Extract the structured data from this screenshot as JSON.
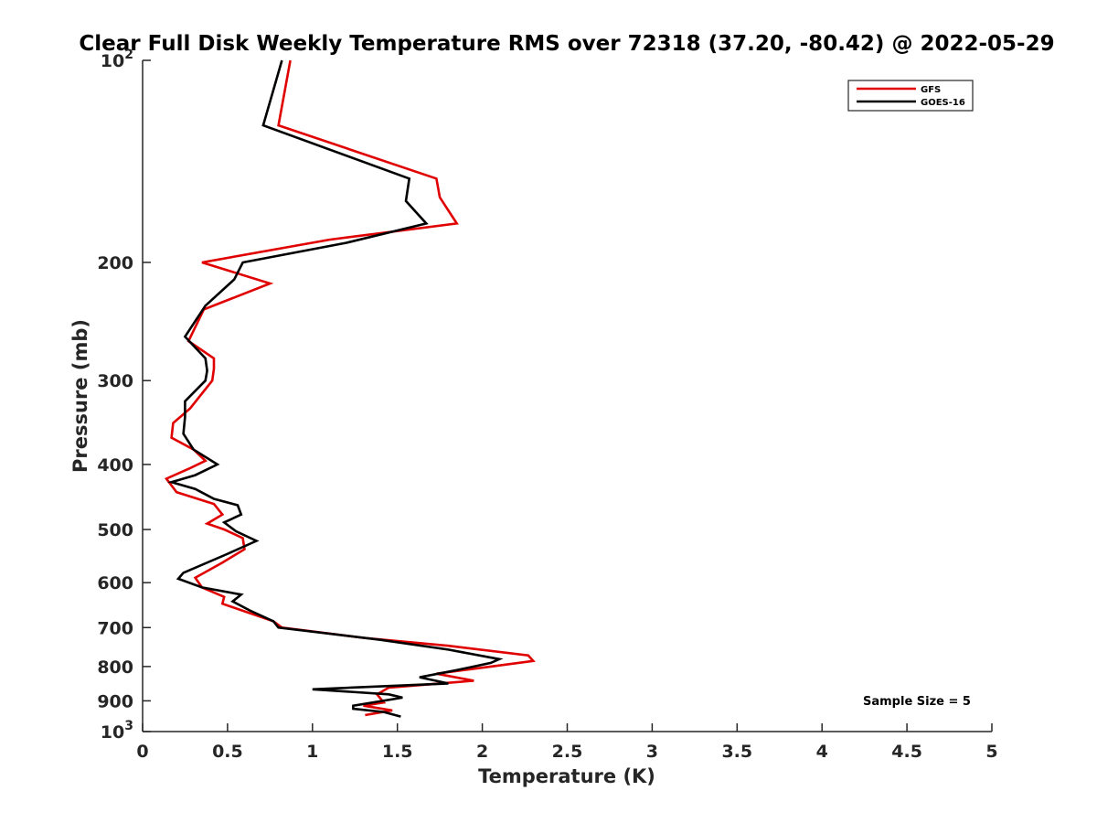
{
  "chart_data": {
    "type": "line",
    "title": "Clear Full Disk Weekly Temperature RMS over 72318 (37.20, -80.42) @ 2022-05-29",
    "xlabel": "Temperature (K)",
    "ylabel": "Pressure (mb)",
    "xlim": [
      0,
      5
    ],
    "ylim": [
      100,
      1000
    ],
    "y_scale": "log",
    "y_reversed": true,
    "grid": false,
    "legend_position": "top-right",
    "x_ticks": [
      0,
      0.5,
      1,
      1.5,
      2,
      2.5,
      3,
      3.5,
      4,
      4.5,
      5
    ],
    "x_tick_labels": [
      "0",
      "0.5",
      "1",
      "1.5",
      "2",
      "2.5",
      "3",
      "3.5",
      "4",
      "4.5",
      "5"
    ],
    "y_ticks": [
      {
        "value": 100,
        "base": "10",
        "exp": "2"
      },
      {
        "value": 200,
        "label": "200"
      },
      {
        "value": 300,
        "label": "300"
      },
      {
        "value": 400,
        "label": "400"
      },
      {
        "value": 500,
        "label": "500"
      },
      {
        "value": 600,
        "label": "600"
      },
      {
        "value": 700,
        "label": "700"
      },
      {
        "value": 800,
        "label": "800"
      },
      {
        "value": 900,
        "label": "900"
      },
      {
        "value": 1000,
        "base": "10",
        "exp": "3"
      }
    ],
    "annotation": "Sample Size = 5",
    "series": [
      {
        "name": "GFS",
        "color": "#e00000",
        "points": [
          [
            0.87,
            100
          ],
          [
            0.8,
            125
          ],
          [
            1.73,
            150
          ],
          [
            1.75,
            160
          ],
          [
            1.85,
            175
          ],
          [
            1.1,
            185
          ],
          [
            0.35,
            200
          ],
          [
            0.75,
            215
          ],
          [
            0.36,
            235
          ],
          [
            0.27,
            262
          ],
          [
            0.42,
            278
          ],
          [
            0.42,
            288
          ],
          [
            0.41,
            300
          ],
          [
            0.28,
            330
          ],
          [
            0.18,
            347
          ],
          [
            0.17,
            365
          ],
          [
            0.3,
            380
          ],
          [
            0.37,
            395
          ],
          [
            0.28,
            405
          ],
          [
            0.14,
            420
          ],
          [
            0.2,
            440
          ],
          [
            0.42,
            458
          ],
          [
            0.47,
            475
          ],
          [
            0.38,
            490
          ],
          [
            0.48,
            500
          ],
          [
            0.59,
            515
          ],
          [
            0.6,
            535
          ],
          [
            0.47,
            560
          ],
          [
            0.31,
            590
          ],
          [
            0.35,
            610
          ],
          [
            0.48,
            630
          ],
          [
            0.47,
            645
          ],
          [
            0.77,
            685
          ],
          [
            0.82,
            700
          ],
          [
            1.3,
            725
          ],
          [
            1.8,
            745
          ],
          [
            2.27,
            770
          ],
          [
            2.3,
            785
          ],
          [
            2.05,
            800
          ],
          [
            1.73,
            820
          ],
          [
            1.95,
            840
          ],
          [
            1.45,
            860
          ],
          [
            1.38,
            880
          ],
          [
            1.42,
            905
          ],
          [
            1.3,
            915
          ],
          [
            1.47,
            930
          ],
          [
            1.31,
            945
          ]
        ]
      },
      {
        "name": "GOES-16",
        "color": "#000000",
        "points": [
          [
            0.82,
            100
          ],
          [
            0.71,
            125
          ],
          [
            1.57,
            150
          ],
          [
            1.55,
            162
          ],
          [
            1.67,
            175
          ],
          [
            1.2,
            187
          ],
          [
            0.59,
            200
          ],
          [
            0.54,
            212
          ],
          [
            0.37,
            232
          ],
          [
            0.25,
            258
          ],
          [
            0.37,
            278
          ],
          [
            0.38,
            290
          ],
          [
            0.37,
            300
          ],
          [
            0.25,
            322
          ],
          [
            0.25,
            340
          ],
          [
            0.24,
            360
          ],
          [
            0.3,
            380
          ],
          [
            0.44,
            400
          ],
          [
            0.31,
            415
          ],
          [
            0.17,
            425
          ],
          [
            0.31,
            435
          ],
          [
            0.42,
            450
          ],
          [
            0.56,
            460
          ],
          [
            0.58,
            475
          ],
          [
            0.48,
            488
          ],
          [
            0.55,
            503
          ],
          [
            0.67,
            520
          ],
          [
            0.49,
            545
          ],
          [
            0.24,
            580
          ],
          [
            0.21,
            592
          ],
          [
            0.35,
            610
          ],
          [
            0.58,
            625
          ],
          [
            0.53,
            640
          ],
          [
            0.63,
            660
          ],
          [
            0.77,
            685
          ],
          [
            0.8,
            700
          ],
          [
            1.4,
            730
          ],
          [
            1.8,
            755
          ],
          [
            2.1,
            780
          ],
          [
            2.05,
            790
          ],
          [
            1.85,
            810
          ],
          [
            1.63,
            830
          ],
          [
            1.8,
            848
          ],
          [
            1.0,
            865
          ],
          [
            1.45,
            880
          ],
          [
            1.53,
            890
          ],
          [
            1.24,
            915
          ],
          [
            1.24,
            925
          ],
          [
            1.42,
            935
          ],
          [
            1.52,
            950
          ]
        ]
      }
    ]
  }
}
